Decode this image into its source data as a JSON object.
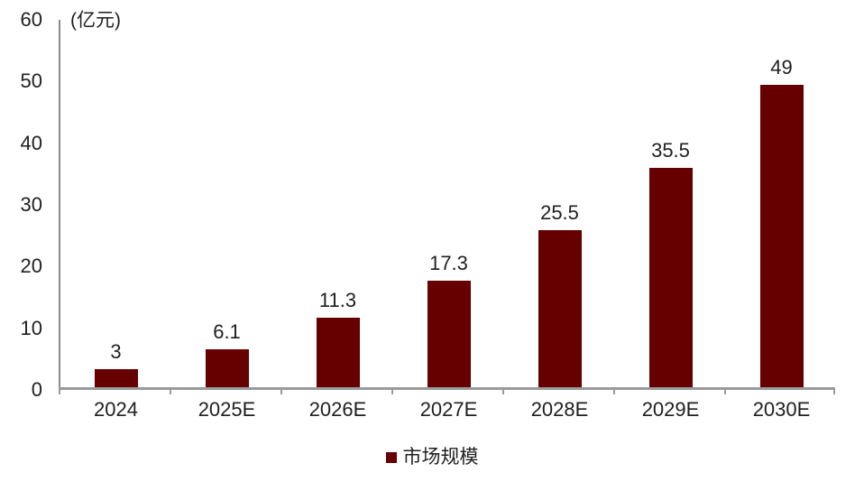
{
  "colors": {
    "bar": "#660000",
    "axis": "#9a9a9a",
    "text": "#1f1f1f",
    "background": "#ffffff"
  },
  "chart_data": {
    "type": "bar",
    "title": "",
    "unit_label": "(亿元)",
    "categories": [
      "2024",
      "2025E",
      "2026E",
      "2027E",
      "2028E",
      "2029E",
      "2030E"
    ],
    "values": [
      3,
      6.1,
      11.3,
      17.3,
      25.5,
      35.5,
      49
    ],
    "value_labels": [
      "3",
      "6.1",
      "11.3",
      "17.3",
      "25.5",
      "35.5",
      "49"
    ],
    "series_name": "市场规模",
    "ylim": [
      0,
      60
    ],
    "yticks": [
      0,
      10,
      20,
      30,
      40,
      50,
      60
    ],
    "grid": false,
    "legend_position": "bottom-center"
  },
  "legend": {
    "label": "市场规模"
  }
}
